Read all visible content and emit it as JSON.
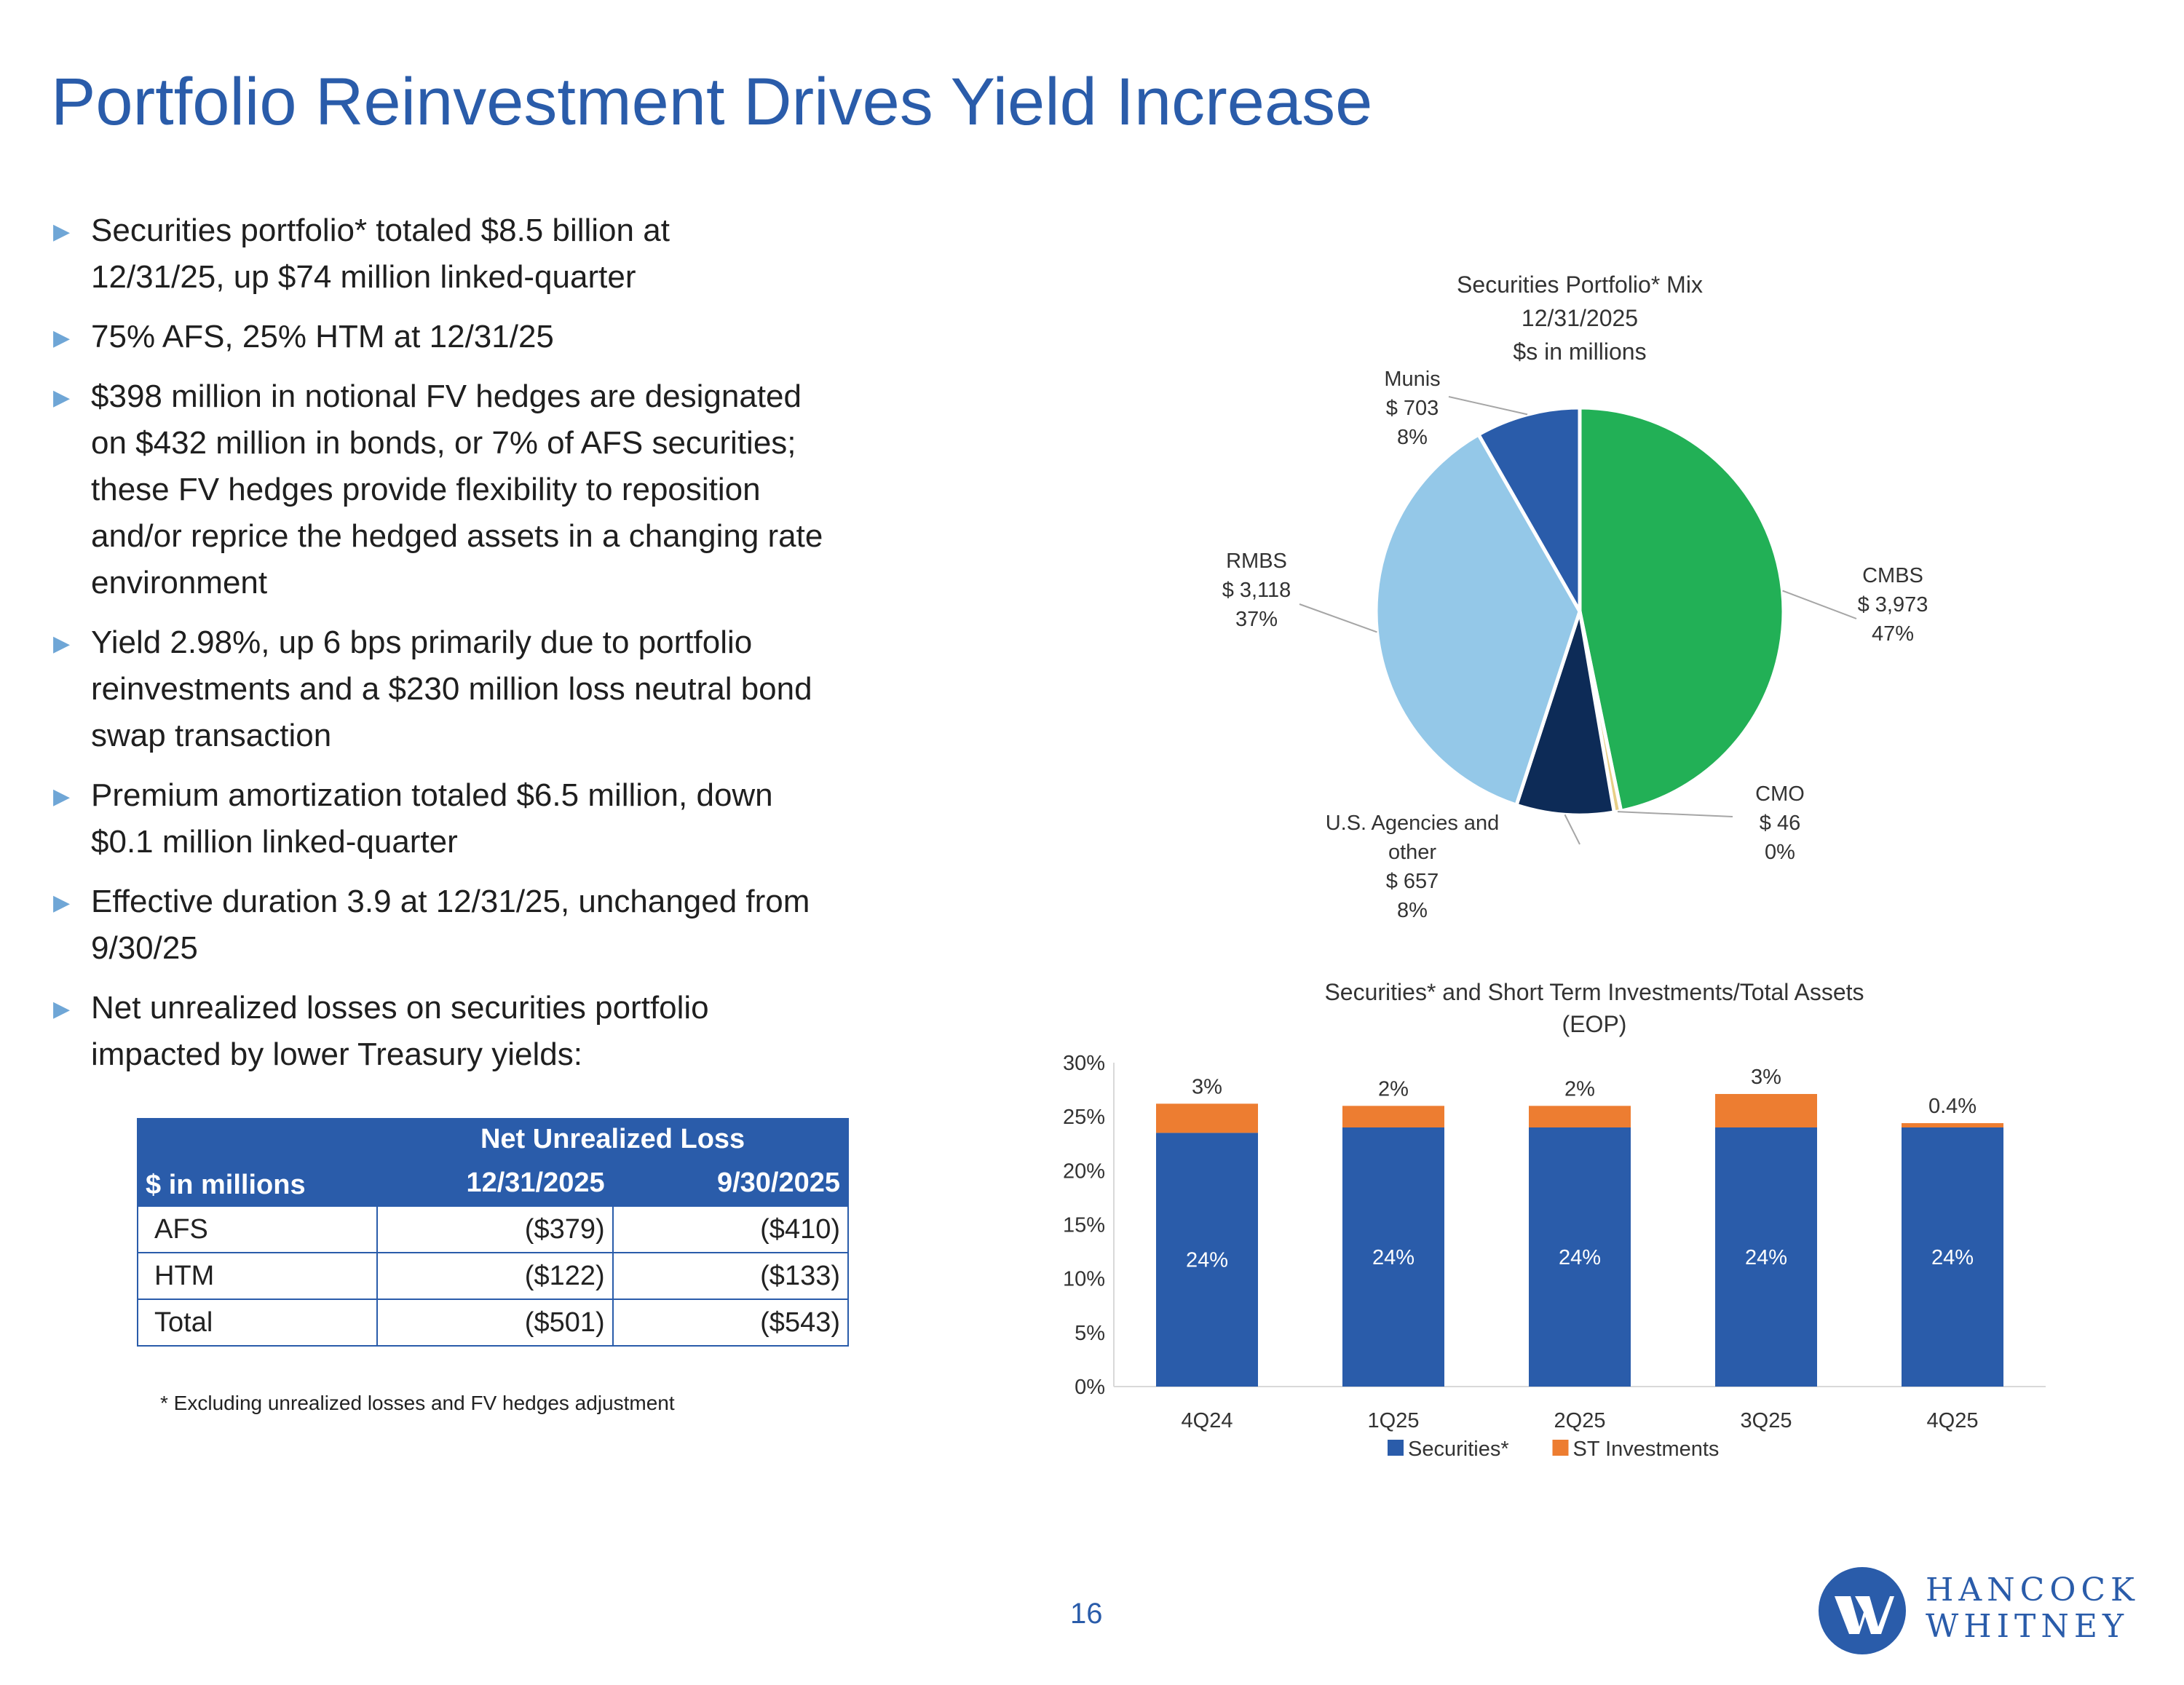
{
  "title": "Portfolio Reinvestment Drives Yield Increase",
  "bullets": [
    {
      "lines": [
        "Securities portfolio* totaled $8.5 billion at",
        "12/31/25, up $74 million linked-quarter"
      ]
    },
    {
      "lines": [
        "75% AFS, 25% HTM at 12/31/25"
      ]
    },
    {
      "lines": [
        "$398 million in notional FV hedges are designated",
        "on $432 million in bonds, or 7% of AFS securities;",
        "these FV hedges provide flexibility to reposition",
        "and/or reprice the hedged assets in a changing rate",
        "environment"
      ]
    },
    {
      "lines": [
        "Yield 2.98%, up 6 bps primarily due to portfolio",
        "reinvestments and a $230 million loss neutral bond",
        "swap transaction"
      ]
    },
    {
      "lines": [
        "Premium amortization totaled $6.5 million, down",
        "$0.1 million linked-quarter"
      ]
    },
    {
      "lines": [
        "Effective duration 3.9 at 12/31/25, unchanged from",
        "9/30/25"
      ]
    },
    {
      "lines": [
        "Net unrealized losses on securities portfolio",
        "impacted by lower Treasury yields:"
      ]
    }
  ],
  "table": {
    "unit_label": "$ in millions",
    "group_header": "Net Unrealized Loss",
    "columns": [
      "12/31/2025",
      "9/30/2025"
    ],
    "rows": [
      {
        "label": "AFS",
        "values": [
          "($379)",
          "($410)"
        ]
      },
      {
        "label": "HTM",
        "values": [
          "($122)",
          "($133)"
        ]
      },
      {
        "label": "Total",
        "values": [
          "($501)",
          "($543)"
        ]
      }
    ]
  },
  "footnote": "* Excluding unrealized losses and FV hedges adjustment",
  "page_number": "16",
  "logo": {
    "line1": "HANCOCK",
    "line2": "WHITNEY"
  },
  "chart_data": [
    {
      "type": "pie",
      "title_lines": [
        "Securities Portfolio* Mix",
        "12/31/2025",
        "$s in millions"
      ],
      "slices": [
        {
          "name": "CMBS",
          "value": 3973,
          "value_label": "$ 3,973",
          "percent_label": "47%",
          "color": "#22b056"
        },
        {
          "name": "CMO",
          "value": 46,
          "value_label": "$ 46",
          "percent_label": "0%",
          "color": "#e8cf86"
        },
        {
          "name": "U.S. Agencies and other",
          "name_lines": [
            "U.S. Agencies and",
            "other"
          ],
          "value": 657,
          "value_label": "$ 657",
          "percent_label": "8%",
          "color": "#0d2b57"
        },
        {
          "name": "RMBS",
          "value": 3118,
          "value_label": "$ 3,118",
          "percent_label": "37%",
          "color": "#94c8e8"
        },
        {
          "name": "Munis",
          "value": 703,
          "value_label": "$ 703",
          "percent_label": "8%",
          "color": "#2a5caa"
        }
      ]
    },
    {
      "type": "bar",
      "stacked": true,
      "title_lines": [
        "Securities* and Short Term Investments/Total Assets",
        "(EOP)"
      ],
      "categories": [
        "4Q24",
        "1Q25",
        "2Q25",
        "3Q25",
        "4Q25"
      ],
      "series": [
        {
          "name": "Securities*",
          "color": "#2a5caa",
          "values": [
            23.5,
            24.0,
            24.0,
            24.0,
            24.0
          ],
          "labels": [
            "24%",
            "24%",
            "24%",
            "24%",
            "24%"
          ]
        },
        {
          "name": "ST Investments",
          "color": "#ed7d31",
          "values": [
            2.7,
            2.0,
            2.0,
            3.1,
            0.4
          ],
          "labels": [
            "3%",
            "2%",
            "2%",
            "3%",
            "0.4%"
          ]
        }
      ],
      "ylim": [
        0,
        30
      ],
      "yticks": [
        "0%",
        "5%",
        "10%",
        "15%",
        "20%",
        "25%",
        "30%"
      ],
      "legend": "bottom"
    }
  ]
}
